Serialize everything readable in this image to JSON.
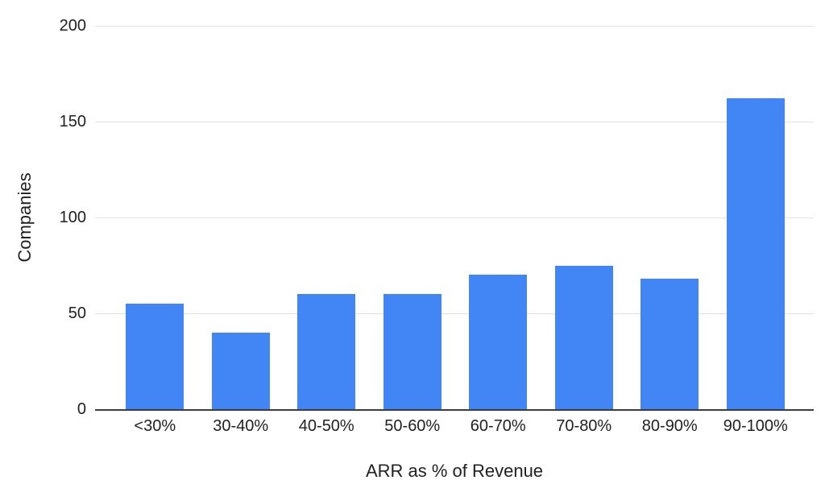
{
  "chart_data": {
    "type": "bar",
    "categories": [
      "<30%",
      "30-40%",
      "40-50%",
      "50-60%",
      "60-70%",
      "70-80%",
      "80-90%",
      "90-100%"
    ],
    "values": [
      55,
      40,
      60,
      60,
      70,
      75,
      68,
      162
    ],
    "title": "",
    "xlabel": "ARR as % of Revenue",
    "ylabel": "Companies",
    "ylim": [
      0,
      200
    ],
    "yticks": [
      0,
      50,
      100,
      150,
      200
    ],
    "bar_color": "#4285F4",
    "gridline_color": "#e0e0e0",
    "axis_line_color": "#3d3d3d",
    "text_color": "#212121",
    "background_color": "#ffffff",
    "grid": true,
    "legend_position": "none"
  }
}
